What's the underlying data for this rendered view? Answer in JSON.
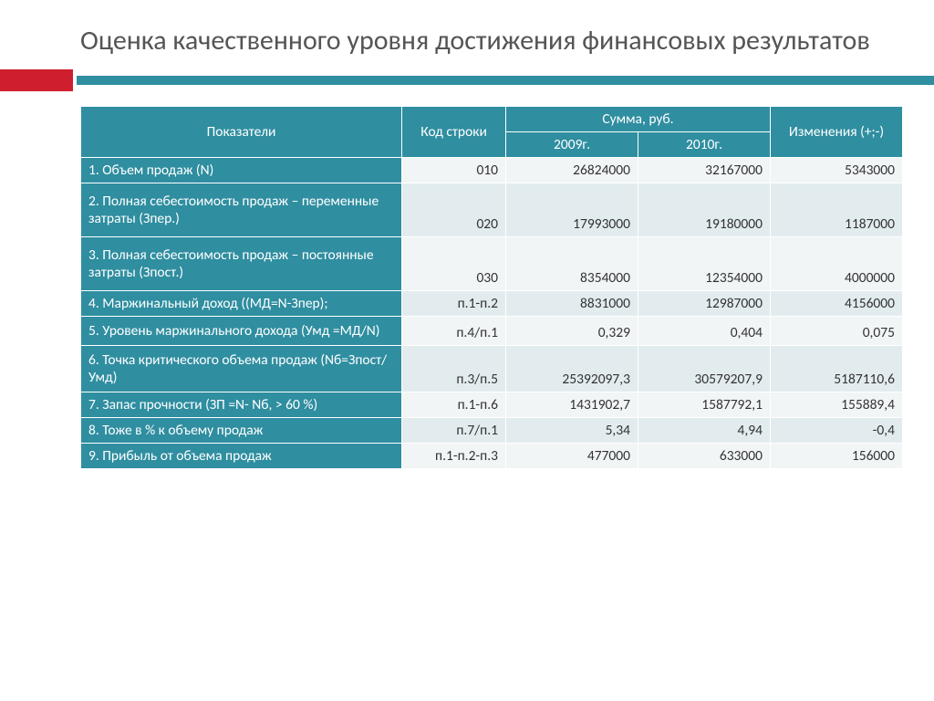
{
  "title": "Оценка качественного уровня достижения финансовых результатов",
  "colors": {
    "accent_red": "#cf1f2e",
    "teal": "#2f8ea0",
    "cell_light": "#f1f5f6",
    "cell_alt": "#e2ecee",
    "title_text": "#555555",
    "cell_text": "#333333"
  },
  "table": {
    "headers": {
      "indicators": "Показатели",
      "code": "Код строки",
      "sum": "Сумма, руб.",
      "y2009": "2009г.",
      "y2010": "2010г.",
      "change": "Изменения (+;-)"
    },
    "rows": [
      {
        "label": "1. Объем продаж (N)",
        "code": "010",
        "y2009": "26824000",
        "y2010": "32167000",
        "chg": "5343000"
      },
      {
        "label": "2. Полная себестоимость продаж – переменные затраты (Зпер.)",
        "code": "020",
        "y2009": "17993000",
        "y2010": "19180000",
        "chg": "1187000"
      },
      {
        "label": "3. Полная себестоимость продаж – постоянные затраты (Зпост.)",
        "code": "030",
        "y2009": "8354000",
        "y2010": "12354000",
        "chg": "4000000"
      },
      {
        "label": "4. Маржинальный доход ((МД=N-Зпер);",
        "code": "п.1-п.2",
        "y2009": "8831000",
        "y2010": "12987000",
        "chg": "4156000"
      },
      {
        "label": "5. Уровень маржинального дохода (Умд =МД/N)",
        "code": "п.4/п.1",
        "y2009": "0,329",
        "y2010": "0,404",
        "chg": "0,075"
      },
      {
        "label": "6. Точка критического объема продаж (Nб=Зпост/Умд)",
        "code": "п.3/п.5",
        "y2009": "25392097,3",
        "y2010": "30579207,9",
        "chg": "5187110,6"
      },
      {
        "label": "7. Запас прочности (ЗП =N- Nб, > 60 %)",
        "code": "п.1-п.6",
        "y2009": "1431902,7",
        "y2010": "1587792,1",
        "chg": "155889,4"
      },
      {
        "label": "8. Тоже в % к объему продаж",
        "code": "п.7/п.1",
        "y2009": "5,34",
        "y2010": "4,94",
        "chg": "-0,4"
      },
      {
        "label": "9. Прибыль от объема продаж",
        "code": "п.1-п.2-п.3",
        "y2009": "477000",
        "y2010": "633000",
        "chg": "156000"
      }
    ]
  }
}
